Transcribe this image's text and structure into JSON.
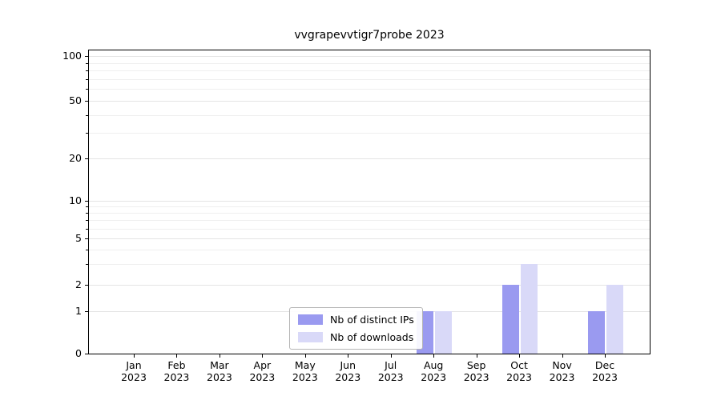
{
  "chart_data": {
    "type": "bar",
    "title": "vvgrapevvtigr7probe 2023",
    "scale": "symlog",
    "categories": [
      "Jan",
      "Feb",
      "Mar",
      "Apr",
      "May",
      "Jun",
      "Jul",
      "Aug",
      "Sep",
      "Oct",
      "Nov",
      "Dec"
    ],
    "year_label": "2023",
    "series": [
      {
        "name": "Nb of distinct IPs",
        "color": "#9a9af0",
        "values": [
          0,
          0,
          0,
          0,
          0,
          0,
          0,
          1,
          0,
          2,
          0,
          1
        ]
      },
      {
        "name": "Nb of downloads",
        "color": "#d9d9f8",
        "values": [
          0,
          0,
          0,
          0,
          0,
          0,
          0,
          1,
          0,
          3,
          0,
          2
        ]
      }
    ],
    "yticks": [
      0,
      1,
      2,
      5,
      10,
      20,
      50,
      100
    ],
    "minor_gridlines": [
      3,
      4,
      6,
      7,
      8,
      9,
      30,
      40,
      60,
      70,
      80,
      90
    ],
    "ylim": [
      0,
      130
    ],
    "xlabel": "",
    "ylabel": "",
    "legend_position": "lower center inside plot",
    "grid": "horizontal"
  }
}
